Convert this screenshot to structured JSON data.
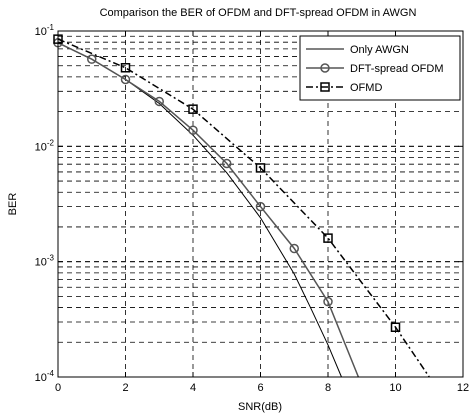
{
  "chart_data": {
    "type": "line",
    "title": "Comparison the BER of OFDM and DFT-spread OFDM in AWGN",
    "xlabel": "SNR(dB)",
    "ylabel": "BER",
    "xlim": [
      0,
      12
    ],
    "ylim": [
      0.0001,
      0.1
    ],
    "yscale": "log",
    "grid": true,
    "legend_position": "top-right",
    "x_ticks": [
      0,
      2,
      4,
      6,
      8,
      10,
      12
    ],
    "x_tick_labels": [
      "0",
      "2",
      "4",
      "6",
      "8",
      "10",
      "12"
    ],
    "y_ticks": [
      0.1,
      0.01,
      0.001,
      0.0001
    ],
    "y_tick_bases": [
      "10",
      "10",
      "10",
      "10"
    ],
    "y_tick_exps": [
      "-1",
      "-2",
      "-3",
      "-4"
    ],
    "series": [
      {
        "name": "Only AWGN",
        "style": "solid",
        "marker": "none",
        "color": "#000000",
        "x": [
          0,
          1,
          2,
          3,
          4,
          5,
          6,
          7,
          7.5,
          8,
          8.4
        ],
        "y": [
          0.079,
          0.057,
          0.038,
          0.0235,
          0.0125,
          0.0059,
          0.0024,
          0.00078,
          0.00039,
          0.00019,
          0.0001
        ]
      },
      {
        "name": "DFT-spread OFDM",
        "style": "solid",
        "marker": "circle",
        "color": "#555555",
        "x": [
          0,
          1,
          2,
          3,
          4,
          5,
          6,
          7,
          8,
          8.9
        ],
        "y": [
          0.079,
          0.057,
          0.038,
          0.0245,
          0.0138,
          0.0071,
          0.003,
          0.0013,
          0.00045,
          0.0001
        ]
      },
      {
        "name": "OFMD",
        "style": "dashdot",
        "marker": "square",
        "color": "#000000",
        "x": [
          0,
          2,
          4,
          6,
          8,
          10,
          11
        ],
        "y": [
          0.085,
          0.048,
          0.021,
          0.0065,
          0.0016,
          0.00027,
          0.0001
        ]
      }
    ]
  }
}
